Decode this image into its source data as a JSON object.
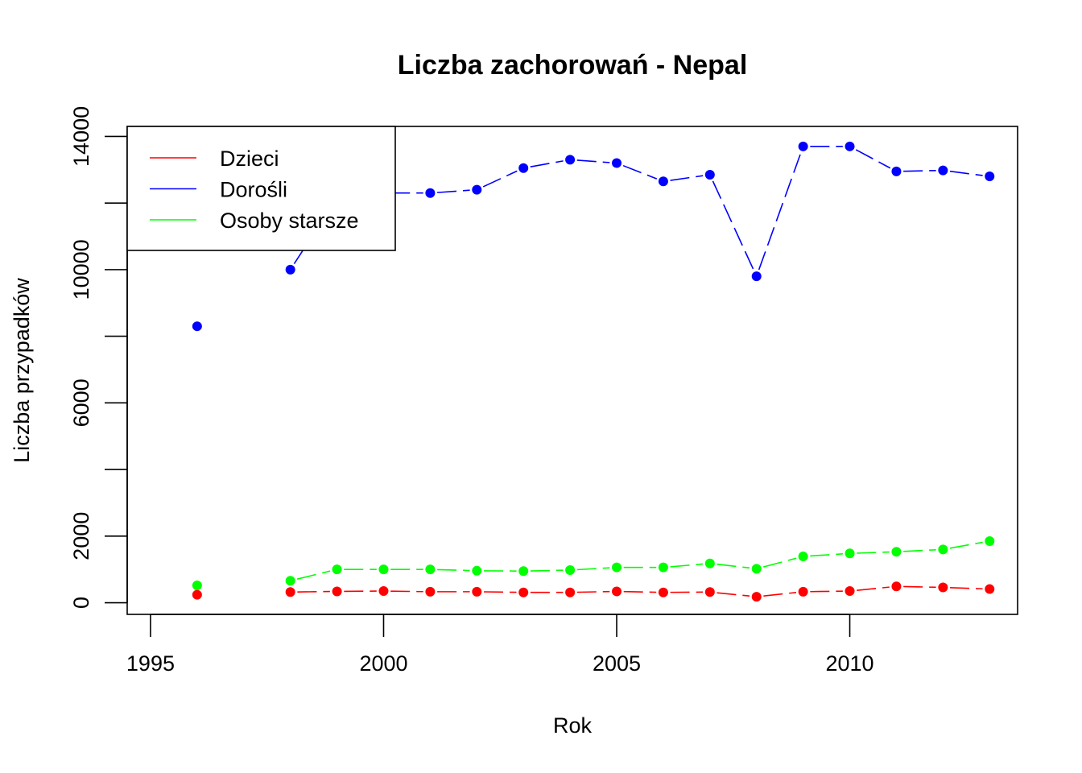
{
  "chart_data": {
    "type": "line",
    "title": "Liczba zachorowań -  Nepal",
    "xlabel": "Rok",
    "ylabel": "Liczba przypadków",
    "xlim": [
      1994.5,
      2013.6
    ],
    "ylim": [
      -350,
      14300
    ],
    "xticks": [
      1995,
      2000,
      2005,
      2010
    ],
    "yticks": [
      0,
      2000,
      4000,
      6000,
      8000,
      10000,
      12000,
      14000
    ],
    "ytick_labels": [
      "0",
      "2000",
      "",
      "6000",
      "",
      "10000",
      "",
      "14000"
    ],
    "legend_position": "top-left",
    "line_style": "dashed, joined points",
    "x": [
      1996,
      1998,
      1999,
      2000,
      2001,
      2002,
      2003,
      2004,
      2005,
      2006,
      2007,
      2008,
      2009,
      2010,
      2011,
      2012,
      2013
    ],
    "series": [
      {
        "name": "Dzieci",
        "color": "#ff0000",
        "values": [
          240,
          320,
          340,
          350,
          330,
          330,
          310,
          310,
          340,
          310,
          320,
          180,
          330,
          350,
          490,
          460,
          410
        ]
      },
      {
        "name": "Dorośli",
        "color": "#0000ff",
        "values": [
          8300,
          10000,
          12150,
          12300,
          12300,
          12400,
          13050,
          13300,
          13200,
          12650,
          12850,
          9800,
          13700,
          13700,
          12950,
          12980,
          12800
        ]
      },
      {
        "name": "Osoby starsze",
        "color": "#00ff00",
        "values": [
          520,
          660,
          1000,
          1000,
          1000,
          960,
          950,
          980,
          1060,
          1060,
          1180,
          1020,
          1390,
          1480,
          1530,
          1600,
          1850
        ]
      }
    ]
  }
}
